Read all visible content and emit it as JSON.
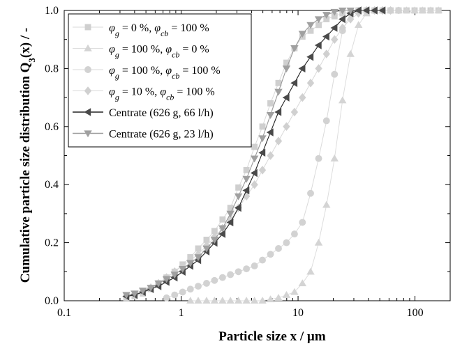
{
  "chart_data": {
    "type": "line",
    "xscale": "log",
    "xlabel": "Particle size x / µm",
    "ylabel_main": "Cumulative particle size distribution Q",
    "ylabel_sub": "3",
    "ylabel_tail": "(x) / -",
    "xlim": [
      0.1,
      200
    ],
    "ylim": [
      0,
      1.0
    ],
    "xticks": [
      0.1,
      1,
      10,
      100
    ],
    "xtick_labels": [
      "0.1",
      "1",
      "10",
      "100"
    ],
    "yticks": [
      0,
      0.2,
      0.4,
      0.6,
      0.8,
      1.0
    ],
    "ytick_labels": [
      "0.0",
      "0.2",
      "0.4",
      "0.6",
      "0.8",
      "1.0"
    ],
    "legend_position": "top-left",
    "series": [
      {
        "name": "φg = 0 %, φcb = 100 %",
        "phi_g": "0",
        "phi_cb": "100",
        "marker": "square",
        "color": "#cfcfcf",
        "line_color": "#d9d9d9",
        "x": [
          0.34,
          0.4,
          0.47,
          0.55,
          0.64,
          0.75,
          0.88,
          1.03,
          1.2,
          1.4,
          1.65,
          1.93,
          2.26,
          2.64,
          3.09,
          3.62,
          4.24,
          4.96,
          5.81,
          6.8,
          7.96,
          9.32,
          10.9,
          12.8,
          15,
          17.5,
          20.5,
          24,
          28.1,
          32.9,
          38.5,
          45.1,
          52.8,
          61.8,
          72.4,
          84.7,
          99.2,
          116,
          136,
          159
        ],
        "y": [
          0.01,
          0.015,
          0.025,
          0.04,
          0.06,
          0.08,
          0.1,
          0.125,
          0.15,
          0.18,
          0.21,
          0.24,
          0.28,
          0.32,
          0.39,
          0.45,
          0.53,
          0.6,
          0.68,
          0.75,
          0.82,
          0.87,
          0.91,
          0.93,
          0.95,
          0.97,
          0.98,
          0.99,
          0.995,
          1,
          1,
          1,
          1,
          1,
          1,
          1,
          1,
          1,
          1,
          1
        ]
      },
      {
        "name": "φg = 100 %, φcb = 0 %",
        "phi_g": "100",
        "phi_cb": "0",
        "marker": "triangle-up",
        "color": "#d4d4d4",
        "line_color": "#dddddd",
        "x": [
          1.2,
          1.4,
          1.65,
          1.93,
          2.26,
          2.64,
          3.09,
          3.62,
          4.24,
          4.96,
          5.81,
          6.8,
          7.96,
          9.32,
          10.9,
          12.8,
          15,
          17.5,
          20.5,
          24,
          28.1,
          32.9,
          38.5,
          45.1,
          52.8,
          61.8,
          72.4,
          84.7,
          99.2,
          116,
          136,
          159
        ],
        "y": [
          0,
          0,
          0,
          0,
          0,
          0,
          0,
          0,
          0,
          0,
          0.005,
          0.01,
          0.02,
          0.03,
          0.06,
          0.1,
          0.2,
          0.33,
          0.49,
          0.69,
          0.85,
          0.95,
          0.99,
          1,
          1,
          1,
          1,
          1,
          1,
          1,
          1,
          1
        ]
      },
      {
        "name": "φg = 100 %, φcb = 100 %",
        "phi_g": "100",
        "phi_cb": "100",
        "marker": "circle",
        "color": "#d2d2d2",
        "line_color": "#dadada",
        "x": [
          0.75,
          0.88,
          1.03,
          1.2,
          1.4,
          1.65,
          1.93,
          2.26,
          2.64,
          3.09,
          3.62,
          4.24,
          4.96,
          5.81,
          6.8,
          7.96,
          9.32,
          10.9,
          12.8,
          15,
          17.5,
          20.5,
          24,
          28.1,
          32.9,
          38.5,
          45.1,
          52.8,
          61.8,
          72.4
        ],
        "y": [
          0.01,
          0.02,
          0.03,
          0.04,
          0.05,
          0.06,
          0.07,
          0.08,
          0.09,
          0.1,
          0.11,
          0.12,
          0.14,
          0.16,
          0.18,
          0.2,
          0.23,
          0.27,
          0.37,
          0.49,
          0.62,
          0.78,
          0.93,
          0.99,
          1,
          1,
          1,
          1,
          1,
          1
        ]
      },
      {
        "name": "φg = 10 %, φcb = 100 %",
        "phi_g": "10",
        "phi_cb": "100",
        "marker": "diamond",
        "color": "#d0d0d0",
        "line_color": "#d9d9d9",
        "x": [
          0.34,
          0.4,
          0.47,
          0.55,
          0.64,
          0.75,
          0.88,
          1.03,
          1.2,
          1.4,
          1.65,
          1.93,
          2.26,
          2.64,
          3.09,
          3.62,
          4.24,
          4.96,
          5.81,
          6.8,
          7.96,
          9.32,
          10.9,
          12.8,
          15,
          17.5,
          20.5,
          24,
          28.1,
          32.9,
          38.5,
          45.1,
          52.8,
          61.8
        ],
        "y": [
          0.015,
          0.02,
          0.03,
          0.045,
          0.06,
          0.08,
          0.1,
          0.12,
          0.14,
          0.16,
          0.19,
          0.22,
          0.25,
          0.28,
          0.32,
          0.36,
          0.4,
          0.45,
          0.5,
          0.55,
          0.6,
          0.65,
          0.7,
          0.75,
          0.8,
          0.85,
          0.9,
          0.94,
          0.97,
          0.99,
          1,
          1,
          1,
          1
        ]
      },
      {
        "name": "Centrate (626 g, 66 l/h)",
        "marker": "triangle-left",
        "color": "#4a4a4a",
        "line_color": "#222222",
        "x": [
          0.34,
          0.4,
          0.47,
          0.55,
          0.64,
          0.75,
          0.88,
          1.03,
          1.2,
          1.4,
          1.65,
          1.93,
          2.26,
          2.64,
          3.09,
          3.62,
          4.24,
          4.96,
          5.81,
          6.8,
          7.96,
          9.32,
          10.9,
          12.8,
          15,
          17.5,
          20.5,
          24,
          28.1,
          32.9,
          38.5,
          45.1,
          52.8
        ],
        "y": [
          0.015,
          0.02,
          0.03,
          0.04,
          0.05,
          0.065,
          0.08,
          0.1,
          0.12,
          0.14,
          0.17,
          0.2,
          0.23,
          0.27,
          0.32,
          0.38,
          0.44,
          0.51,
          0.58,
          0.65,
          0.7,
          0.75,
          0.8,
          0.84,
          0.88,
          0.91,
          0.94,
          0.97,
          0.99,
          1,
          1,
          1,
          1
        ]
      },
      {
        "name": "Centrate (626 g, 23 l/h)",
        "marker": "triangle-down",
        "color": "#a0a0a0",
        "line_color": "#999999",
        "x": [
          0.34,
          0.4,
          0.47,
          0.55,
          0.64,
          0.75,
          0.88,
          1.03,
          1.2,
          1.4,
          1.65,
          1.93,
          2.26,
          2.64,
          3.09,
          3.62,
          4.24,
          4.96,
          5.81,
          6.8,
          7.96,
          9.32,
          10.9,
          12.8,
          15,
          17.5,
          20.5,
          24,
          28.1
        ],
        "y": [
          0.02,
          0.025,
          0.035,
          0.045,
          0.06,
          0.075,
          0.09,
          0.11,
          0.13,
          0.15,
          0.18,
          0.21,
          0.25,
          0.3,
          0.36,
          0.42,
          0.49,
          0.56,
          0.64,
          0.72,
          0.8,
          0.87,
          0.92,
          0.95,
          0.97,
          0.985,
          0.995,
          1,
          1
        ]
      }
    ]
  }
}
